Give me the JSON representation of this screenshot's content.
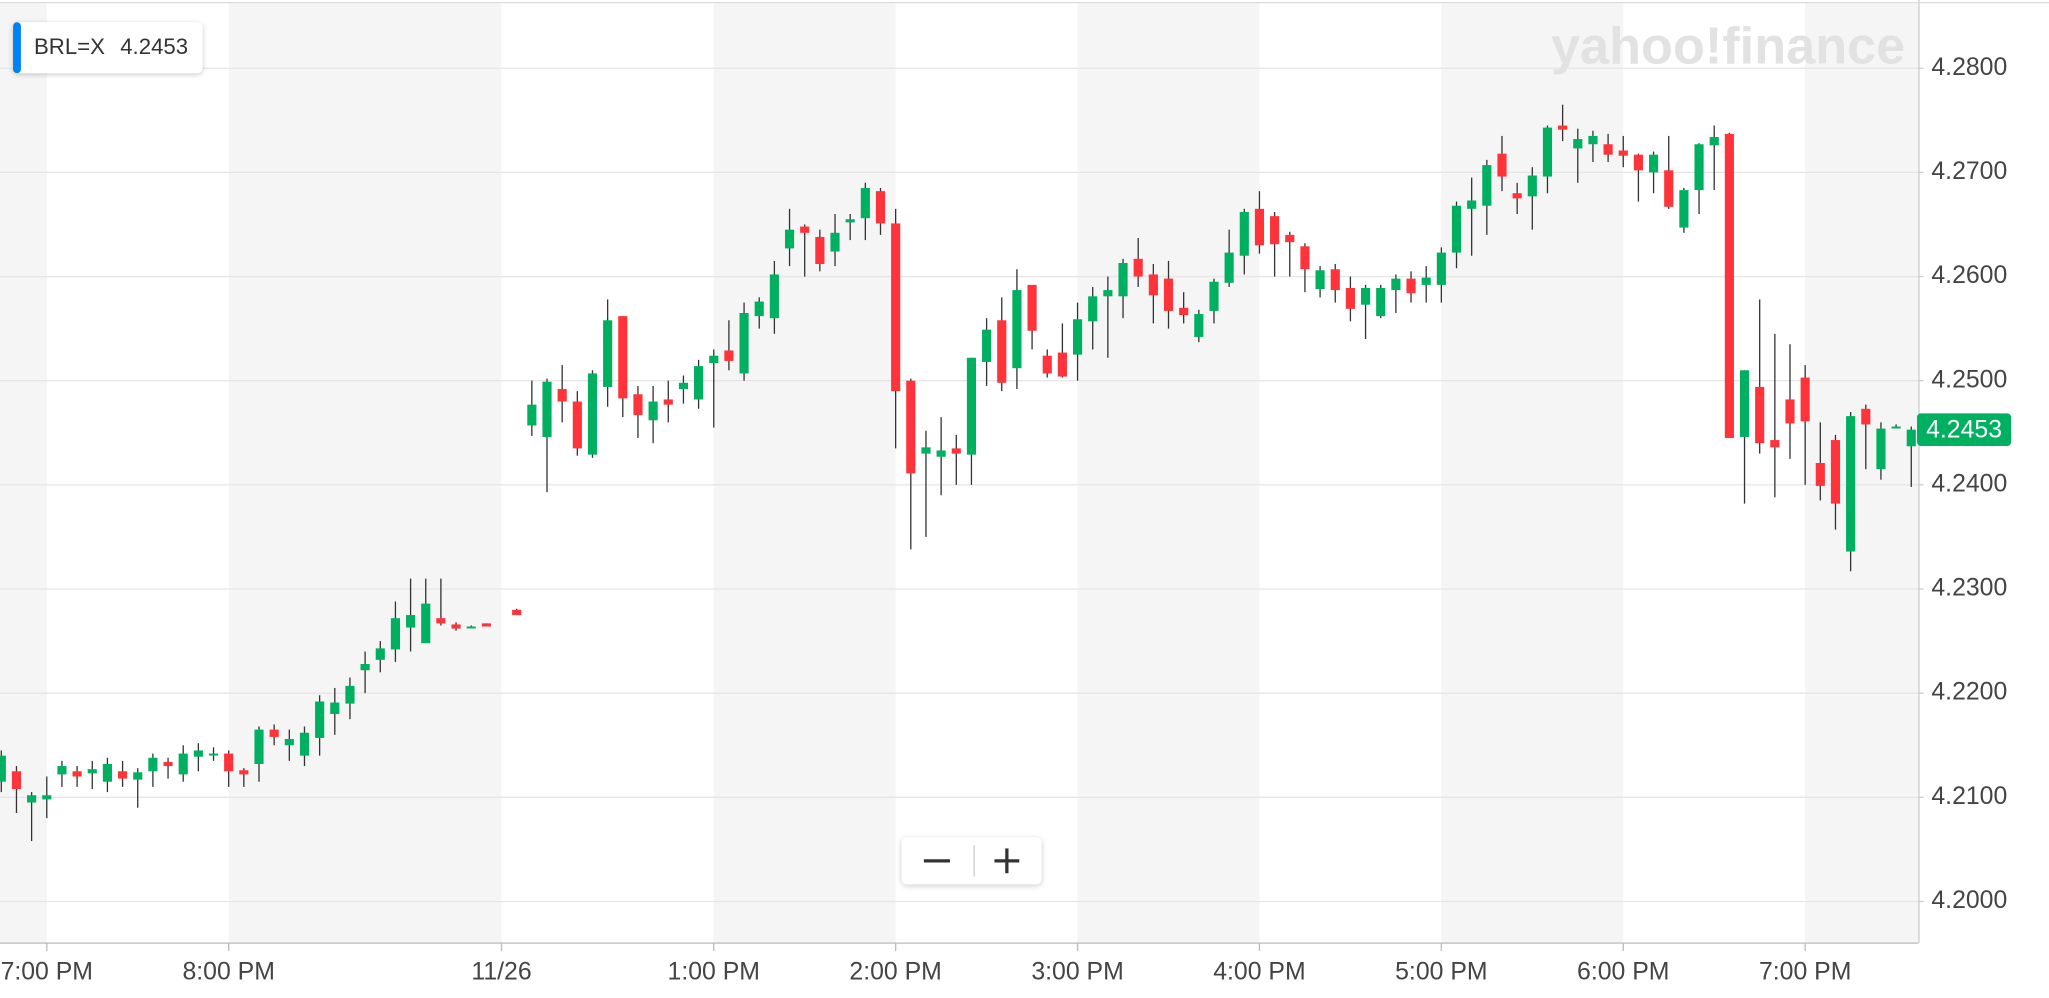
{
  "chart_data": {
    "type": "candlestick",
    "ticker": "BRL=X",
    "last_price": 4.2453,
    "watermark": "yahoo!finance",
    "up_color": "#00b061",
    "down_color": "#ff333a",
    "wick_color": "#333333",
    "grid": true,
    "ylim": [
      4.196,
      4.2863
    ],
    "yticks": [
      {
        "value": 4.2,
        "label": "4.2000"
      },
      {
        "value": 4.21,
        "label": "4.2100"
      },
      {
        "value": 4.22,
        "label": "4.2200"
      },
      {
        "value": 4.23,
        "label": "4.2300"
      },
      {
        "value": 4.24,
        "label": "4.2400"
      },
      {
        "value": 4.25,
        "label": "4.2500"
      },
      {
        "value": 4.26,
        "label": "4.2600"
      },
      {
        "value": 4.27,
        "label": "4.2700"
      },
      {
        "value": 4.28,
        "label": "4.2800"
      }
    ],
    "categories": [
      null,
      null,
      null,
      "7:00 PM",
      null,
      null,
      null,
      null,
      null,
      null,
      null,
      null,
      null,
      null,
      null,
      "8:00 PM",
      null,
      null,
      null,
      null,
      null,
      null,
      null,
      null,
      null,
      null,
      null,
      null,
      null,
      null,
      null,
      null,
      null,
      "11/26",
      null,
      null,
      null,
      null,
      null,
      null,
      null,
      null,
      null,
      null,
      null,
      null,
      null,
      "1:00 PM",
      null,
      null,
      null,
      null,
      null,
      null,
      null,
      null,
      null,
      null,
      null,
      "2:00 PM",
      null,
      null,
      null,
      null,
      null,
      null,
      null,
      null,
      null,
      null,
      null,
      "3:00 PM",
      null,
      null,
      null,
      null,
      null,
      null,
      null,
      null,
      null,
      null,
      null,
      "4:00 PM",
      null,
      null,
      null,
      null,
      null,
      null,
      null,
      null,
      null,
      null,
      null,
      "5:00 PM",
      null,
      null,
      null,
      null,
      null,
      null,
      null,
      null,
      null,
      null,
      null,
      "6:00 PM",
      null,
      null,
      null,
      null,
      null,
      null,
      null,
      null,
      null,
      null,
      null,
      "7:00 PM",
      null,
      null,
      null,
      null,
      null,
      null,
      null
    ],
    "open": [
      4.2115,
      4.2125,
      4.2095,
      4.2098,
      4.2122,
      4.2125,
      4.2123,
      4.2115,
      4.2125,
      4.2117,
      4.2125,
      4.2134,
      4.2122,
      4.2139,
      4.2142,
      4.2142,
      4.2126,
      4.2132,
      4.2165,
      4.215,
      4.214,
      4.2157,
      4.218,
      4.219,
      4.2222,
      4.2232,
      4.2242,
      4.2263,
      4.2248,
      4.2272,
      4.2266,
      4.2264,
      4.2267,
      null,
      4.228,
      4.2457,
      4.2446,
      4.2492,
      4.248,
      4.2429,
      4.2494,
      4.2562,
      4.2487,
      4.2462,
      4.2482,
      4.2492,
      4.2482,
      4.2517,
      4.2529,
      4.2507,
      4.2562,
      4.256,
      4.2627,
      4.2648,
      4.2638,
      4.2624,
      4.2652,
      4.2656,
      4.2682,
      4.2651,
      4.25,
      4.243,
      4.2427,
      4.2435,
      4.2429,
      4.2518,
      4.2558,
      4.2512,
      4.2592,
      4.2524,
      4.2527,
      4.2525,
      4.2557,
      4.2581,
      4.2581,
      4.2617,
      4.2602,
      4.2598,
      4.257,
      4.2542,
      4.2567,
      4.2594,
      4.262,
      4.2665,
      4.2658,
      4.264,
      4.2629,
      4.2588,
      4.2607,
      4.2589,
      4.2573,
      4.2562,
      4.2587,
      4.2598,
      4.2592,
      4.2592,
      4.2623,
      4.2665,
      4.2668,
      4.2718,
      4.268,
      4.2677,
      4.2696,
      4.2745,
      4.2723,
      4.2727,
      4.2727,
      4.2721,
      4.2717,
      4.27,
      4.2702,
      4.2647,
      4.2683,
      4.2726,
      4.2737,
      4.2446,
      4.2494,
      4.2443,
      4.2482,
      4.2503,
      4.2421,
      4.2443,
      4.2336,
      4.2473,
      4.2415,
      4.2455,
      4.2437
    ],
    "high": [
      4.2145,
      4.213,
      4.2105,
      4.212,
      4.2135,
      4.213,
      4.2135,
      4.2138,
      4.2135,
      4.2128,
      4.2142,
      4.2138,
      4.215,
      4.2152,
      4.2148,
      4.2145,
      4.2128,
      4.2168,
      4.217,
      4.2165,
      4.2168,
      4.2198,
      4.2205,
      4.2215,
      4.224,
      4.225,
      4.2288,
      4.231,
      4.231,
      4.231,
      4.2268,
      4.2265,
      4.2267,
      null,
      4.2281,
      4.25,
      4.2502,
      4.2515,
      4.249,
      4.251,
      4.2578,
      4.2562,
      4.2495,
      4.2495,
      4.25,
      4.2505,
      4.252,
      4.253,
      4.2558,
      4.2575,
      4.258,
      4.2615,
      4.2665,
      4.265,
      4.2645,
      4.266,
      4.266,
      4.269,
      4.2685,
      4.2665,
      4.2502,
      4.2452,
      4.2465,
      4.2448,
      4.2522,
      4.256,
      4.258,
      4.2607,
      4.2592,
      4.253,
      4.2555,
      4.2575,
      4.259,
      4.26,
      4.2617,
      4.2637,
      4.2612,
      4.2615,
      4.2585,
      4.2568,
      4.2598,
      4.2645,
      4.2665,
      4.2682,
      4.2662,
      4.2643,
      4.2632,
      4.261,
      4.2612,
      4.26,
      4.2592,
      4.2592,
      4.2602,
      4.2605,
      4.261,
      4.2628,
      4.2672,
      4.2695,
      4.2712,
      4.2735,
      4.269,
      4.2705,
      4.2745,
      4.2765,
      4.2742,
      4.274,
      4.2737,
      4.2735,
      4.2718,
      4.272,
      4.2735,
      4.2685,
      4.2728,
      4.2745,
      4.2738,
      4.251,
      4.2578,
      4.2545,
      4.2535,
      4.2515,
      4.246,
      4.2448,
      4.247,
      4.2477,
      4.246,
      4.2458,
      4.2456
    ],
    "low": [
      4.2105,
      4.2085,
      4.2058,
      4.208,
      4.211,
      4.211,
      4.2108,
      4.2105,
      4.211,
      4.209,
      4.211,
      4.2118,
      4.2115,
      4.2125,
      4.2135,
      4.211,
      4.211,
      4.2115,
      4.215,
      4.2135,
      4.213,
      4.214,
      4.216,
      4.2175,
      4.22,
      4.222,
      4.223,
      4.224,
      4.2248,
      4.2265,
      4.226,
      4.2263,
      4.2264,
      null,
      4.2275,
      4.2447,
      4.2393,
      4.246,
      4.2428,
      4.2426,
      4.2475,
      4.2465,
      4.2445,
      4.244,
      4.246,
      4.2478,
      4.2473,
      4.2455,
      4.251,
      4.25,
      4.255,
      4.2545,
      4.261,
      4.26,
      4.2605,
      4.261,
      4.2635,
      4.2635,
      4.264,
      4.2435,
      4.2338,
      4.235,
      4.239,
      4.24,
      4.24,
      4.2495,
      4.249,
      4.2492,
      4.253,
      4.2503,
      4.2503,
      4.25,
      4.253,
      4.2522,
      4.256,
      4.259,
      4.2555,
      4.255,
      4.2555,
      4.2537,
      4.2555,
      4.259,
      4.2602,
      4.2622,
      4.26,
      4.26,
      4.2585,
      4.258,
      4.2575,
      4.2557,
      4.254,
      4.256,
      4.2565,
      4.2575,
      4.2575,
      4.2575,
      4.2608,
      4.262,
      4.264,
      4.2682,
      4.266,
      4.2645,
      4.268,
      4.273,
      4.269,
      4.271,
      4.271,
      4.2705,
      4.2672,
      4.268,
      4.2665,
      4.2642,
      4.266,
      4.2683,
      4.2445,
      4.2382,
      4.243,
      4.2388,
      4.2425,
      4.24,
      4.2385,
      4.2357,
      4.2317,
      4.2415,
      4.2405,
      4.2455,
      4.2398
    ],
    "close": [
      4.214,
      4.2108,
      4.2102,
      4.2102,
      4.213,
      4.212,
      4.2127,
      4.2132,
      4.2118,
      4.2124,
      4.2138,
      4.213,
      4.2142,
      4.2145,
      4.2142,
      4.2125,
      4.2122,
      4.2165,
      4.2158,
      4.2156,
      4.2162,
      4.2192,
      4.2191,
      4.2207,
      4.2228,
      4.2243,
      4.2272,
      4.2275,
      4.2286,
      4.2267,
      4.2262,
      4.2264,
      4.2264,
      null,
      4.2275,
      4.2477,
      4.2499,
      4.248,
      4.2435,
      4.2507,
      4.2558,
      4.2483,
      4.2467,
      4.248,
      4.2477,
      4.2498,
      4.2514,
      4.2524,
      4.2519,
      4.2565,
      4.2576,
      4.2602,
      4.2645,
      4.2642,
      4.2612,
      4.2642,
      4.2655,
      4.2685,
      4.2651,
      4.249,
      4.2411,
      4.2436,
      4.2433,
      4.243,
      4.2522,
      4.2549,
      4.2498,
      4.2587,
      4.2548,
      4.2507,
      4.2504,
      4.2559,
      4.2581,
      4.2587,
      4.2613,
      4.26,
      4.2582,
      4.2567,
      4.2563,
      4.2564,
      4.2595,
      4.2623,
      4.2662,
      4.263,
      4.2631,
      4.2633,
      4.2607,
      4.2606,
      4.2587,
      4.2569,
      4.2589,
      4.2589,
      4.2598,
      4.2584,
      4.2599,
      4.2623,
      4.2668,
      4.2673,
      4.2707,
      4.2696,
      4.2675,
      4.2697,
      4.2743,
      4.2741,
      4.2732,
      4.2735,
      4.2717,
      4.2716,
      4.2702,
      4.2717,
      4.2667,
      4.2683,
      4.2727,
      4.2734,
      4.2445,
      4.251,
      4.244,
      4.2436,
      4.2459,
      4.2461,
      4.2399,
      4.2382,
      4.2466,
      4.2458,
      4.2454,
      4.2456,
      4.2453
    ]
  }
}
